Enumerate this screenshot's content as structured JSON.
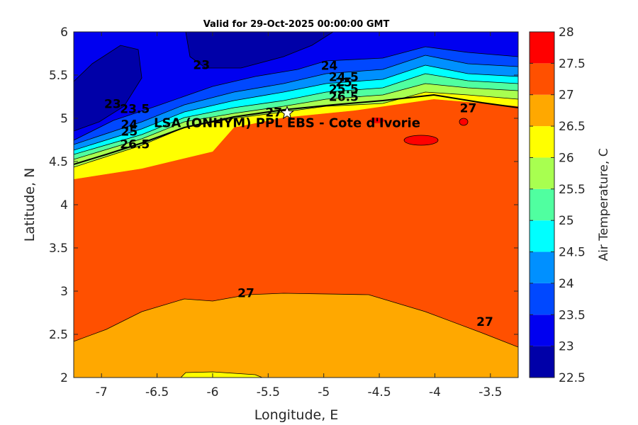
{
  "chart_data": {
    "type": "contour",
    "title": "Valid for 29-Oct-2025 00:00:00 GMT",
    "xlabel": "Longitude, E",
    "ylabel": "Latitude, N",
    "xlim": [
      -7.25,
      -3.25
    ],
    "ylim": [
      2,
      6
    ],
    "xticks": [
      -7,
      -6.5,
      -6,
      -5.5,
      -5,
      -4.5,
      -4,
      -3.5
    ],
    "xtick_labels": [
      "-7",
      "-6.5",
      "-6",
      "-5.5",
      "-5",
      "-4.5",
      "-4",
      "-3.5"
    ],
    "yticks": [
      2,
      2.5,
      3,
      3.5,
      4,
      4.5,
      5,
      5.5,
      6
    ],
    "ytick_labels": [
      "2",
      "2.5",
      "3",
      "3.5",
      "4",
      "4.5",
      "5",
      "5.5",
      "6"
    ],
    "colorbar": {
      "label": "Air Temperature, C",
      "levels": [
        22.5,
        23,
        23.5,
        24,
        24.5,
        25,
        25.5,
        26,
        26.5,
        27,
        27.5,
        28
      ],
      "level_labels": [
        "22.5",
        "23",
        "23.5",
        "24",
        "24.5",
        "25",
        "25.5",
        "26",
        "26.5",
        "27",
        "27.5",
        "28"
      ],
      "colors": [
        "#0000a8",
        "#0000f0",
        "#0048ff",
        "#0090ff",
        "#00ffff",
        "#50ffa0",
        "#a8ff50",
        "#ffff00",
        "#ffa800",
        "#ff5000",
        "#ff0000",
        "#a80000"
      ]
    },
    "contour_labels": [
      {
        "text": "23",
        "lon": -6.9,
        "lat": 5.12
      },
      {
        "text": "23",
        "lon": -6.1,
        "lat": 5.57
      },
      {
        "text": "23.5",
        "lon": -6.7,
        "lat": 5.06
      },
      {
        "text": "24",
        "lon": -4.95,
        "lat": 5.56
      },
      {
        "text": "24.5",
        "lon": -4.82,
        "lat": 5.43
      },
      {
        "text": "25",
        "lon": -4.82,
        "lat": 5.37
      },
      {
        "text": "25.5",
        "lon": -4.82,
        "lat": 5.29
      },
      {
        "text": "26.5",
        "lon": -4.82,
        "lat": 5.2
      },
      {
        "text": "24",
        "lon": -6.75,
        "lat": 4.88
      },
      {
        "text": "25",
        "lon": -6.75,
        "lat": 4.8
      },
      {
        "text": "26.5",
        "lon": -6.7,
        "lat": 4.65
      },
      {
        "text": "27",
        "lon": -5.45,
        "lat": 5.02
      },
      {
        "text": "27",
        "lon": -3.7,
        "lat": 5.07
      },
      {
        "text": "27",
        "lon": -5.7,
        "lat": 2.93
      },
      {
        "text": "27",
        "lon": -3.55,
        "lat": 2.6
      }
    ],
    "site": {
      "name": "LSA (ONHYM) PPL EBS  - Cote d'Ivorie",
      "lon": -5.33,
      "lat": 5.06
    }
  }
}
